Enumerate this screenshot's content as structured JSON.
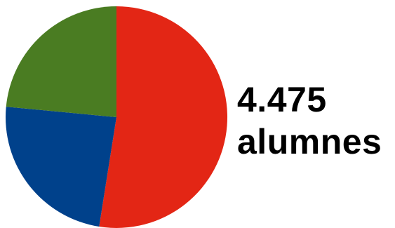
{
  "headline": {
    "number": "4.475",
    "unit": "alumnes"
  },
  "chart_data": {
    "type": "pie",
    "start_angle_deg": 0,
    "direction": "clockwise",
    "series": [
      {
        "value": 52.5,
        "color": "#e32615"
      },
      {
        "value": 24.0,
        "color": "#00418b"
      },
      {
        "value": 23.5,
        "color": "#4a7c22"
      }
    ],
    "legend": "none"
  }
}
